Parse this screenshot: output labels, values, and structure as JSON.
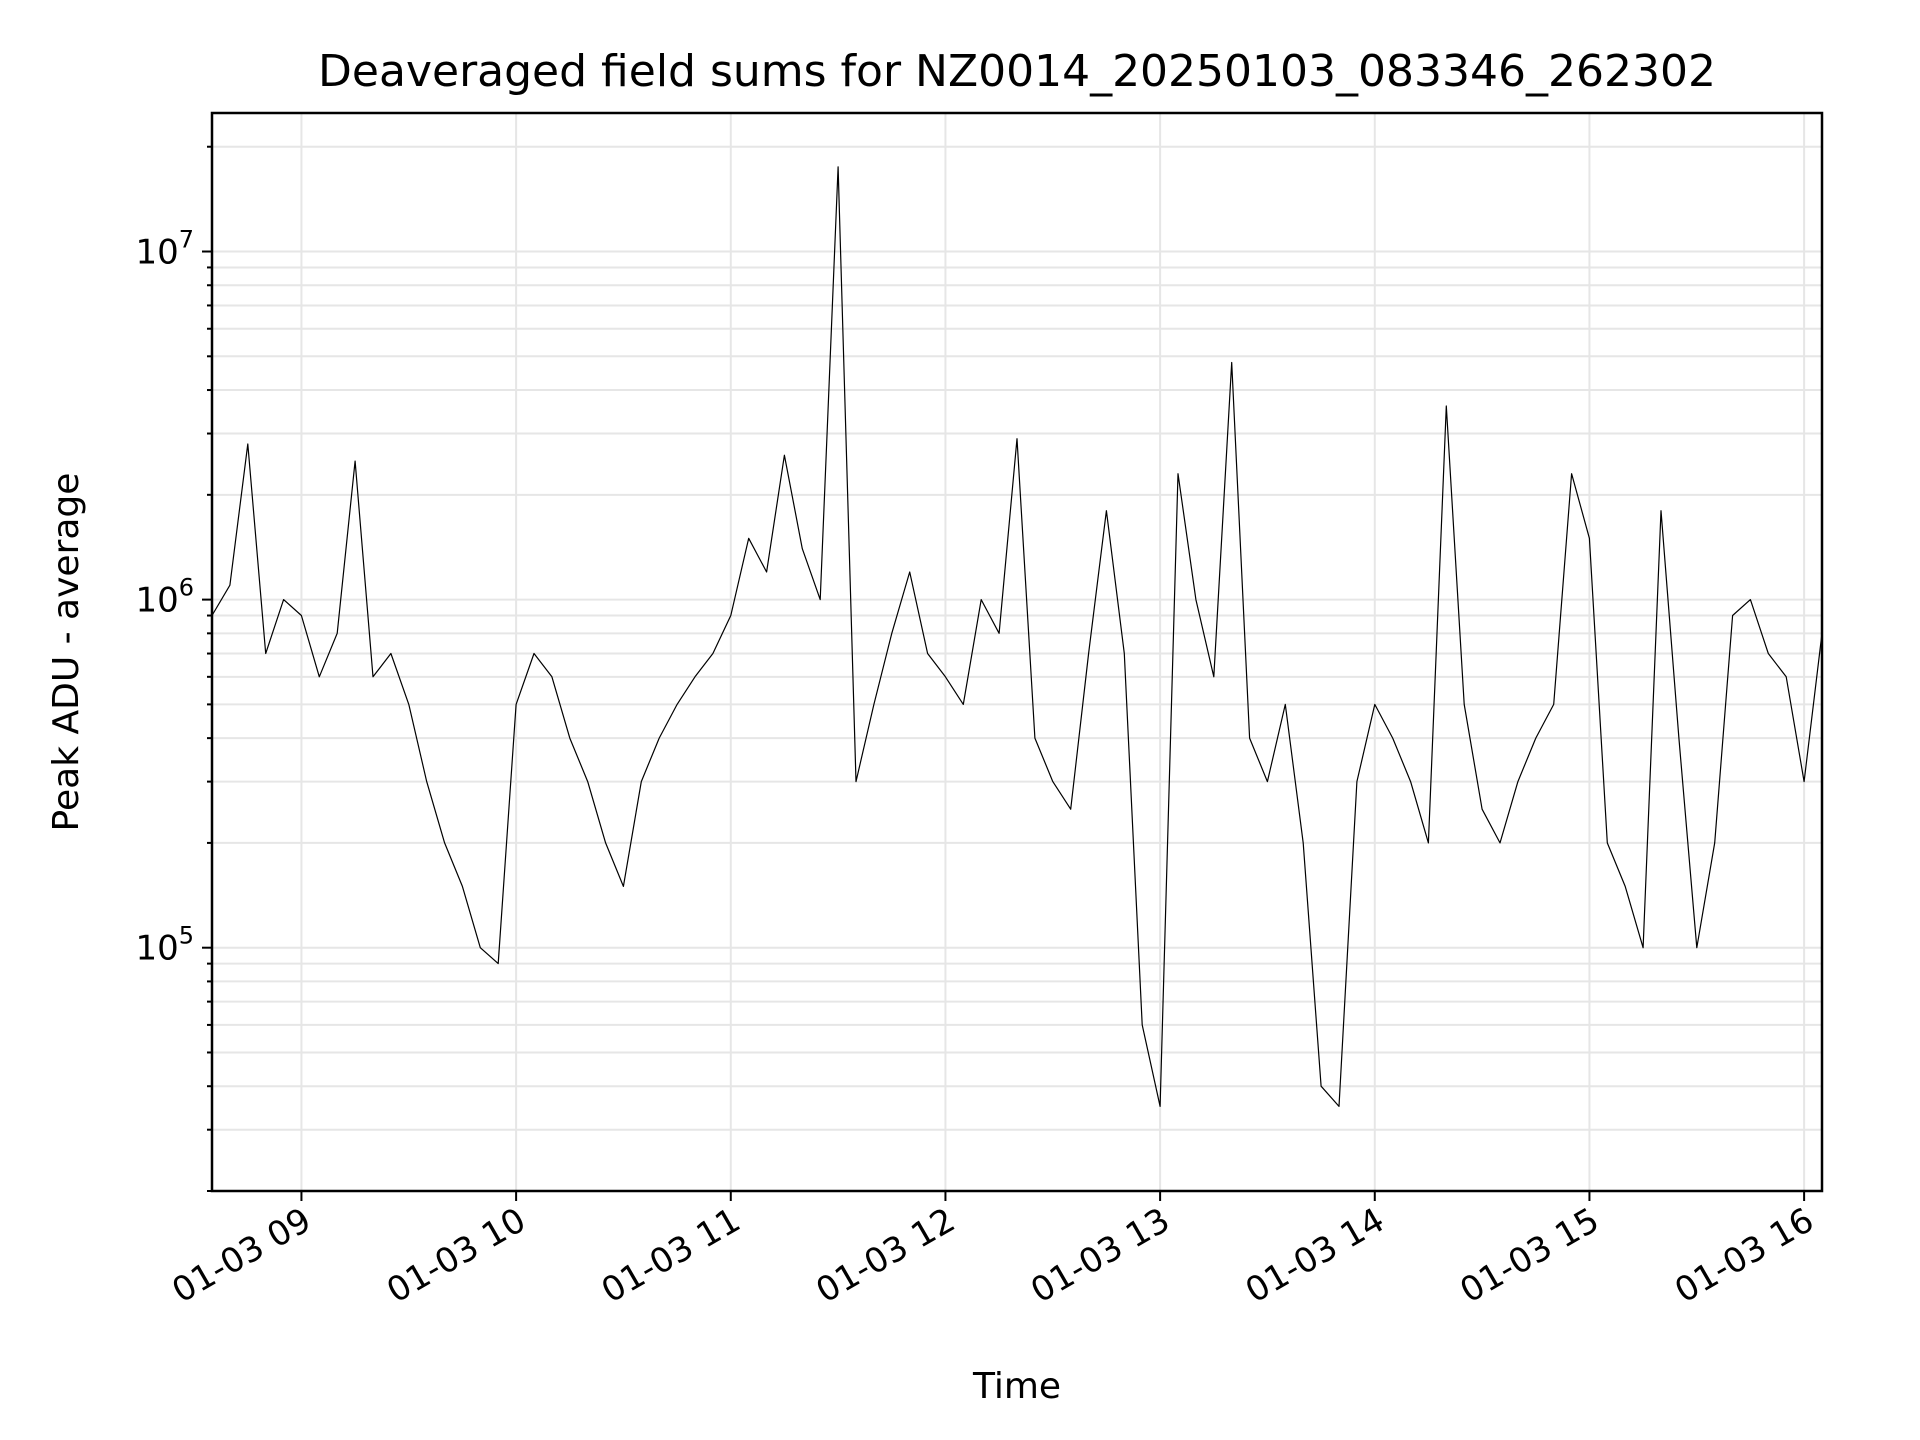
{
  "chart_data": {
    "type": "line",
    "title": "Deaveraged field sums for NZ0014_20250103_083346_262302",
    "xlabel": "Time",
    "ylabel": "Peak ADU - average",
    "yscale": "log",
    "xlim": [
      "2025-01-03 08:35",
      "2025-01-03 16:05"
    ],
    "ylim": [
      20000,
      25000000
    ],
    "grid": "major and minor",
    "x_ticks": [
      {
        "label": "01-03 09",
        "time": "2025-01-03 09:00"
      },
      {
        "label": "01-03 10",
        "time": "2025-01-03 10:00"
      },
      {
        "label": "01-03 11",
        "time": "2025-01-03 11:00"
      },
      {
        "label": "01-03 12",
        "time": "2025-01-03 12:00"
      },
      {
        "label": "01-03 13",
        "time": "2025-01-03 13:00"
      },
      {
        "label": "01-03 14",
        "time": "2025-01-03 14:00"
      },
      {
        "label": "01-03 15",
        "time": "2025-01-03 15:00"
      },
      {
        "label": "01-03 16",
        "time": "2025-01-03 16:00"
      }
    ],
    "y_ticks": [
      {
        "base": "10",
        "exp": "5",
        "value": 100000
      },
      {
        "base": "10",
        "exp": "6",
        "value": 1000000
      },
      {
        "base": "10",
        "exp": "7",
        "value": 10000000
      }
    ],
    "series": [
      {
        "color": "#000000",
        "x": [
          "2025-01-03 08:35",
          "2025-01-03 08:40",
          "2025-01-03 08:45",
          "2025-01-03 08:50",
          "2025-01-03 08:55",
          "2025-01-03 09:00",
          "2025-01-03 09:05",
          "2025-01-03 09:10",
          "2025-01-03 09:15",
          "2025-01-03 09:20",
          "2025-01-03 09:25",
          "2025-01-03 09:30",
          "2025-01-03 09:35",
          "2025-01-03 09:40",
          "2025-01-03 09:45",
          "2025-01-03 09:50",
          "2025-01-03 09:55",
          "2025-01-03 10:00",
          "2025-01-03 10:05",
          "2025-01-03 10:10",
          "2025-01-03 10:15",
          "2025-01-03 10:20",
          "2025-01-03 10:25",
          "2025-01-03 10:30",
          "2025-01-03 10:35",
          "2025-01-03 10:40",
          "2025-01-03 10:45",
          "2025-01-03 10:50",
          "2025-01-03 10:55",
          "2025-01-03 11:00",
          "2025-01-03 11:05",
          "2025-01-03 11:10",
          "2025-01-03 11:15",
          "2025-01-03 11:20",
          "2025-01-03 11:25",
          "2025-01-03 11:30",
          "2025-01-03 11:35",
          "2025-01-03 11:40",
          "2025-01-03 11:45",
          "2025-01-03 11:50",
          "2025-01-03 11:55",
          "2025-01-03 12:00",
          "2025-01-03 12:05",
          "2025-01-03 12:10",
          "2025-01-03 12:15",
          "2025-01-03 12:20",
          "2025-01-03 12:25",
          "2025-01-03 12:30",
          "2025-01-03 12:35",
          "2025-01-03 12:40",
          "2025-01-03 12:45",
          "2025-01-03 12:50",
          "2025-01-03 12:55",
          "2025-01-03 13:00",
          "2025-01-03 13:05",
          "2025-01-03 13:10",
          "2025-01-03 13:15",
          "2025-01-03 13:20",
          "2025-01-03 13:25",
          "2025-01-03 13:30",
          "2025-01-03 13:35",
          "2025-01-03 13:40",
          "2025-01-03 13:45",
          "2025-01-03 13:50",
          "2025-01-03 13:55",
          "2025-01-03 14:00",
          "2025-01-03 14:05",
          "2025-01-03 14:10",
          "2025-01-03 14:15",
          "2025-01-03 14:20",
          "2025-01-03 14:25",
          "2025-01-03 14:30",
          "2025-01-03 14:35",
          "2025-01-03 14:40",
          "2025-01-03 14:45",
          "2025-01-03 14:50",
          "2025-01-03 14:55",
          "2025-01-03 15:00",
          "2025-01-03 15:05",
          "2025-01-03 15:10",
          "2025-01-03 15:15",
          "2025-01-03 15:20",
          "2025-01-03 15:25",
          "2025-01-03 15:30",
          "2025-01-03 15:35",
          "2025-01-03 15:40",
          "2025-01-03 15:45",
          "2025-01-03 15:50",
          "2025-01-03 15:55",
          "2025-01-03 16:00",
          "2025-01-03 16:05"
        ],
        "y": [
          900000,
          1100000,
          2800000,
          700000,
          1000000,
          900000,
          600000,
          800000,
          2500000,
          600000,
          700000,
          500000,
          300000,
          200000,
          150000,
          100000,
          90000,
          500000,
          700000,
          600000,
          400000,
          300000,
          200000,
          150000,
          300000,
          400000,
          500000,
          600000,
          700000,
          900000,
          1500000,
          1200000,
          2600000,
          1400000,
          1000000,
          17500000,
          300000,
          500000,
          800000,
          1200000,
          700000,
          600000,
          500000,
          1000000,
          800000,
          2900000,
          400000,
          300000,
          250000,
          700000,
          1800000,
          700000,
          60000,
          35000,
          2300000,
          1000000,
          600000,
          4800000,
          400000,
          300000,
          500000,
          200000,
          40000,
          35000,
          300000,
          500000,
          400000,
          300000,
          200000,
          3600000,
          500000,
          250000,
          200000,
          300000,
          400000,
          500000,
          2300000,
          1500000,
          200000,
          150000,
          100000,
          1800000,
          400000,
          100000,
          200000,
          900000,
          1000000,
          700000,
          600000,
          300000,
          800000
        ]
      }
    ]
  }
}
